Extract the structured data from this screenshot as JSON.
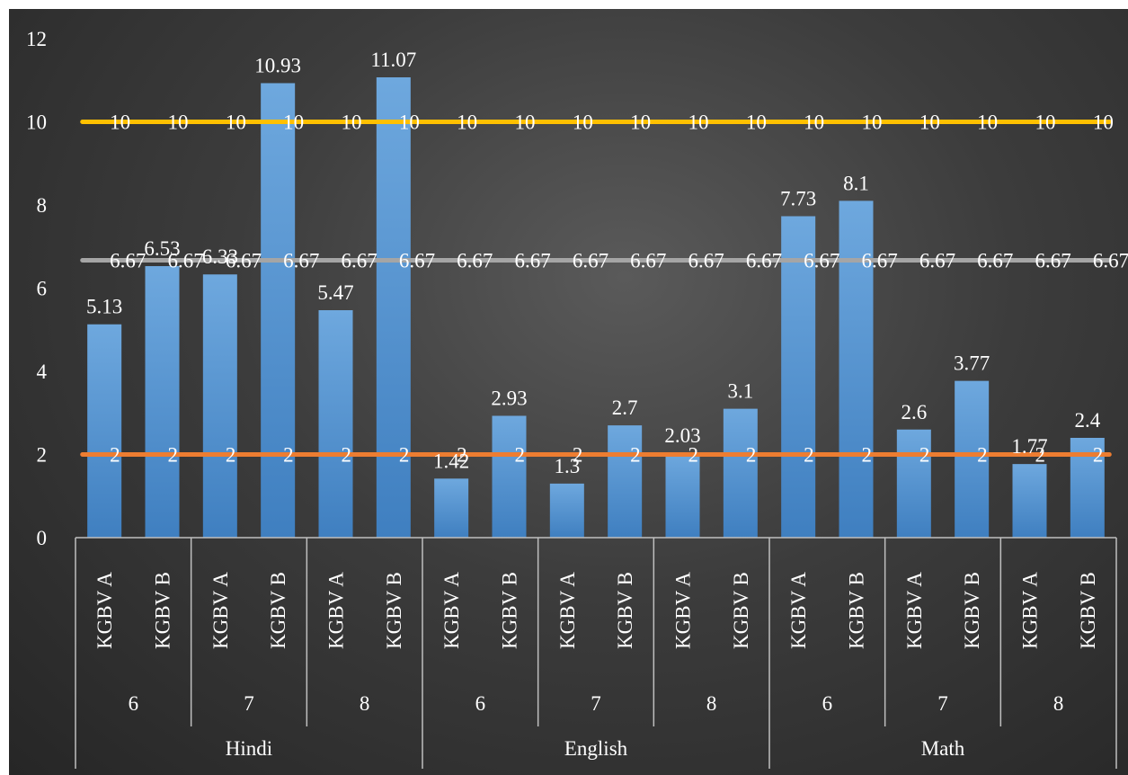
{
  "chart_data": {
    "type": "bar",
    "categories": [
      [
        "Hindi",
        "6",
        "KGBV A"
      ],
      [
        "Hindi",
        "6",
        "KGBV B"
      ],
      [
        "Hindi",
        "7",
        "KGBV A"
      ],
      [
        "Hindi",
        "7",
        "KGBV B"
      ],
      [
        "Hindi",
        "8",
        "KGBV A"
      ],
      [
        "Hindi",
        "8",
        "KGBV B"
      ],
      [
        "English",
        "6",
        "KGBV A"
      ],
      [
        "English",
        "6",
        "KGBV B"
      ],
      [
        "English",
        "7",
        "KGBV A"
      ],
      [
        "English",
        "7",
        "KGBV B"
      ],
      [
        "English",
        "8",
        "KGBV A"
      ],
      [
        "English",
        "8",
        "KGBV B"
      ],
      [
        "Math",
        "6",
        "KGBV A"
      ],
      [
        "Math",
        "6",
        "KGBV B"
      ],
      [
        "Math",
        "7",
        "KGBV A"
      ],
      [
        "Math",
        "7",
        "KGBV B"
      ],
      [
        "Math",
        "8",
        "KGBV A"
      ],
      [
        "Math",
        "8",
        "KGBV B"
      ]
    ],
    "groups": [
      "Hindi",
      "English",
      "Math"
    ],
    "subgroups": [
      "6",
      "7",
      "8",
      "6",
      "7",
      "8",
      "6",
      "7",
      "8"
    ],
    "series": [
      {
        "kind": "bar",
        "color": "#5b9bd5",
        "values": [
          5.13,
          6.53,
          6.33,
          10.93,
          5.47,
          11.07,
          1.42,
          2.93,
          1.3,
          2.7,
          2.03,
          3.1,
          7.73,
          8.1,
          2.6,
          3.77,
          1.77,
          2.4
        ],
        "labels": [
          "5.13",
          "6.53",
          "6.33",
          "10.93",
          "5.47",
          "11.07",
          "1.42",
          "2.93",
          "1.3",
          "2.7",
          "2.03",
          "3.1",
          "7.73",
          "8.1",
          "2.6",
          "3.77",
          "1.77",
          "2.4"
        ]
      },
      {
        "kind": "line",
        "color": "#ffc000",
        "values": [
          10,
          10,
          10,
          10,
          10,
          10,
          10,
          10,
          10,
          10,
          10,
          10,
          10,
          10,
          10,
          10,
          10,
          10
        ],
        "labels": [
          "10",
          "10",
          "10",
          "10",
          "10",
          "10",
          "10",
          "10",
          "10",
          "10",
          "10",
          "10",
          "10",
          "10",
          "10",
          "10",
          "10",
          "10"
        ]
      },
      {
        "kind": "line",
        "color": "#a5a5a5",
        "values": [
          6.67,
          6.67,
          6.67,
          6.67,
          6.67,
          6.67,
          6.67,
          6.67,
          6.67,
          6.67,
          6.67,
          6.67,
          6.67,
          6.67,
          6.67,
          6.67,
          6.67,
          6.67
        ],
        "labels": [
          "6.67",
          "6.67",
          "6.67",
          "6.67",
          "6.67",
          "6.67",
          "6.67",
          "6.67",
          "6.67",
          "6.67",
          "6.67",
          "6.67",
          "6.67",
          "6.67",
          "6.67",
          "6.67",
          "6.67",
          "6.67"
        ]
      },
      {
        "kind": "line",
        "color": "#ed7d31",
        "values": [
          2,
          2,
          2,
          2,
          2,
          2,
          2,
          2,
          2,
          2,
          2,
          2,
          2,
          2,
          2,
          2,
          2,
          2
        ],
        "labels": [
          "2",
          "2",
          "2",
          "2",
          "2",
          "2",
          "2",
          "2",
          "2",
          "2",
          "2",
          "2",
          "2",
          "2",
          "2",
          "2",
          "2",
          "2"
        ]
      }
    ],
    "y_ticks": [
      "0",
      "2",
      "4",
      "6",
      "8",
      "10",
      "12"
    ],
    "ylim": [
      0,
      12
    ],
    "grid": false,
    "legend": "none"
  }
}
